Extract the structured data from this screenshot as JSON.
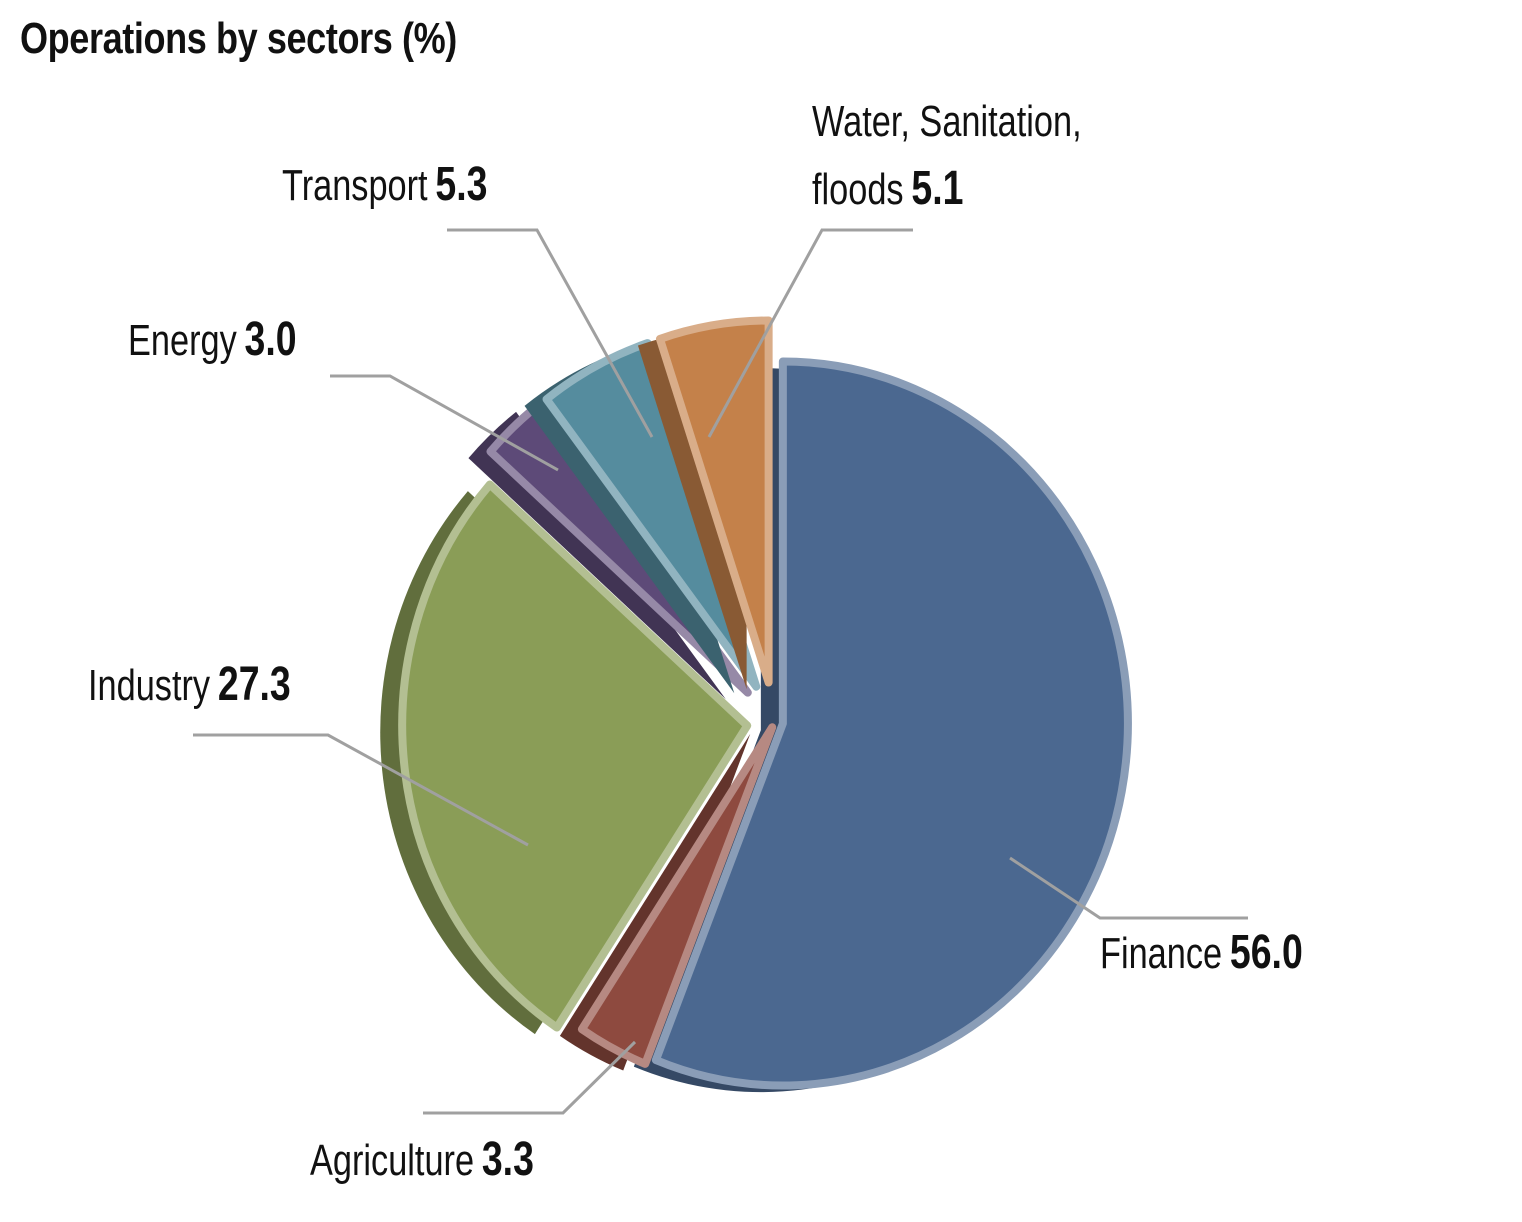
{
  "chart_data": {
    "type": "pie",
    "title": "Operations by sectors (%)",
    "start": "top, clockwise",
    "slices": [
      {
        "label": "Finance",
        "value": 56.0,
        "value_label": "56.0",
        "color": "#4b6890"
      },
      {
        "label": "Agriculture",
        "value": 3.3,
        "value_label": "3.3",
        "color": "#8e4a3f"
      },
      {
        "label": "Industry",
        "value": 27.3,
        "value_label": "27.3",
        "color": "#8a9d57"
      },
      {
        "label": "Energy",
        "value": 3.0,
        "value_label": "3.0",
        "color": "#5d4a78"
      },
      {
        "label": "Transport",
        "value": 5.3,
        "value_label": "5.3",
        "color": "#558c9e"
      },
      {
        "label": "Water, Sanitation, floods",
        "label_line1": "Water, Sanitation,",
        "label_line2": "floods",
        "value": 5.1,
        "value_label": "5.1",
        "color": "#c4814a"
      }
    ]
  }
}
